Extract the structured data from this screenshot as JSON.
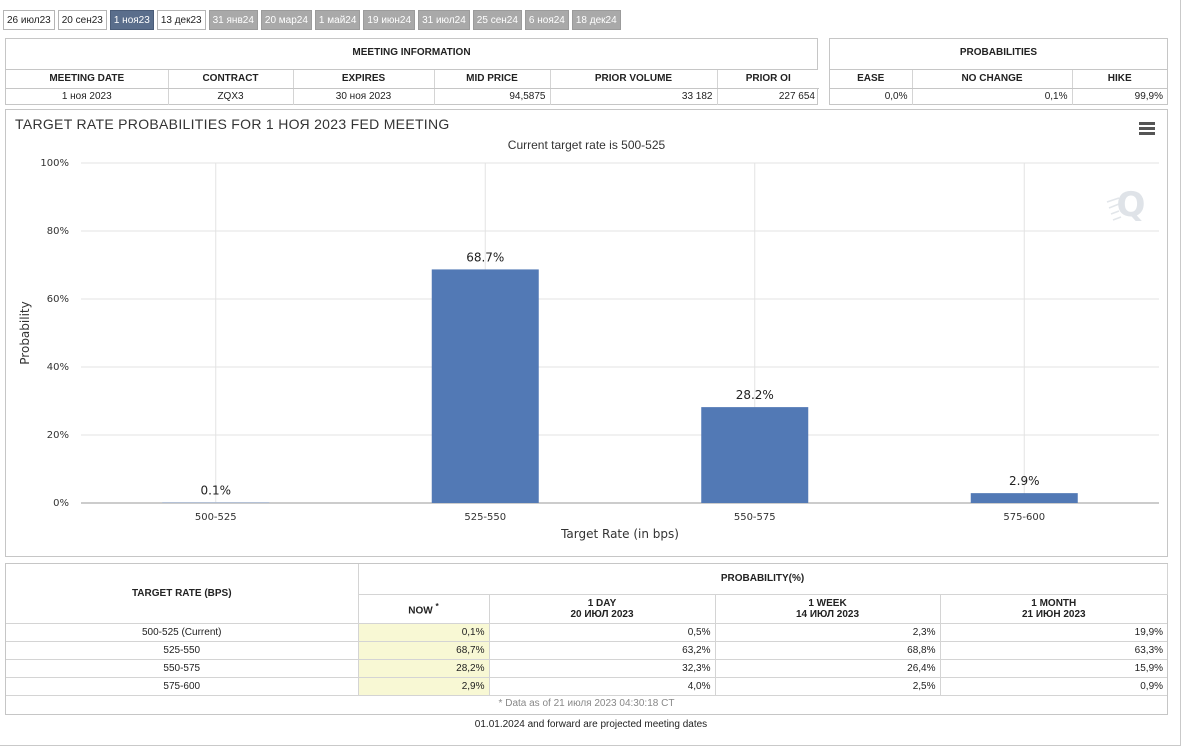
{
  "tabs": [
    {
      "label": "26 июл23",
      "style": "white"
    },
    {
      "label": "20 сен23",
      "style": "white"
    },
    {
      "label": "1 ноя23",
      "style": "active"
    },
    {
      "label": "13 дек23",
      "style": "white"
    },
    {
      "label": "31 янв24",
      "style": "gray"
    },
    {
      "label": "20 мар24",
      "style": "gray"
    },
    {
      "label": "1 май24",
      "style": "gray"
    },
    {
      "label": "19 июн24",
      "style": "gray"
    },
    {
      "label": "31 июл24",
      "style": "gray"
    },
    {
      "label": "25 сен24",
      "style": "gray"
    },
    {
      "label": "6 ноя24",
      "style": "gray"
    },
    {
      "label": "18 дек24",
      "style": "gray"
    }
  ],
  "meeting": {
    "title": "MEETING INFORMATION",
    "headers": [
      "MEETING DATE",
      "CONTRACT",
      "EXPIRES",
      "MID PRICE",
      "PRIOR VOLUME",
      "PRIOR OI"
    ],
    "values": [
      "1 ноя 2023",
      "ZQX3",
      "30 ноя 2023",
      "94,5875",
      "33 182",
      "227 654"
    ]
  },
  "probabilities": {
    "title": "PROBABILITIES",
    "headers": [
      "EASE",
      "NO CHANGE",
      "HIKE"
    ],
    "values": [
      "0,0%",
      "0,1%",
      "99,9%"
    ]
  },
  "chart": {
    "title": "TARGET RATE PROBABILITIES FOR 1 НОЯ 2023 FED MEETING",
    "subtitle": "Current target rate is 500-525",
    "menu_icon": "hamburger-icon",
    "logo_icon": "q-logo-icon",
    "bar_color": "#5279b5"
  },
  "chart_data": {
    "type": "bar",
    "categories": [
      "500-525",
      "525-550",
      "550-575",
      "575-600"
    ],
    "values": [
      0.1,
      68.7,
      28.2,
      2.9
    ],
    "data_labels": [
      "0.1%",
      "68.7%",
      "28.2%",
      "2.9%"
    ],
    "xlabel": "Target Rate (in bps)",
    "ylabel": "Probability",
    "ylim": [
      0,
      100
    ],
    "yticks": [
      "0%",
      "20%",
      "40%",
      "60%",
      "80%",
      "100%"
    ],
    "grid": true
  },
  "bottom": {
    "rate_header": "TARGET RATE (BPS)",
    "prob_header": "PROBABILITY(%)",
    "cols": [
      {
        "l1": "NOW",
        "l2": "",
        "star": "*"
      },
      {
        "l1": "1 DAY",
        "l2": "20 ИЮЛ 2023",
        "star": ""
      },
      {
        "l1": "1 WEEK",
        "l2": "14 ИЮЛ 2023",
        "star": ""
      },
      {
        "l1": "1 MONTH",
        "l2": "21 ИЮН 2023",
        "star": ""
      }
    ],
    "rows": [
      {
        "rate": "500-525 (Current)",
        "vals": [
          "0,1%",
          "0,5%",
          "2,3%",
          "19,9%"
        ]
      },
      {
        "rate": "525-550",
        "vals": [
          "68,7%",
          "63,2%",
          "68,8%",
          "63,3%"
        ]
      },
      {
        "rate": "550-575",
        "vals": [
          "28,2%",
          "32,3%",
          "26,4%",
          "15,9%"
        ]
      },
      {
        "rate": "575-600",
        "vals": [
          "2,9%",
          "4,0%",
          "2,5%",
          "0,9%"
        ]
      }
    ],
    "data_note": "* Data as of 21 июля 2023 04:30:18 CT",
    "footer_note": "01.01.2024 and forward are projected meeting dates"
  }
}
